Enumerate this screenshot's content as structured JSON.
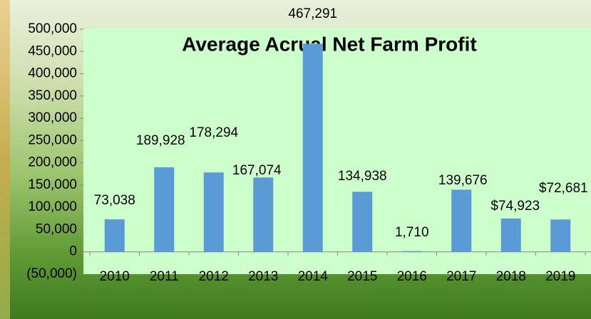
{
  "chart_data": {
    "type": "bar",
    "title": "Average Acrual Net Farm Profit",
    "categories": [
      "2010",
      "2011",
      "2012",
      "2013",
      "2014",
      "2015",
      "2016",
      "2017",
      "2018",
      "2019"
    ],
    "values": [
      73038,
      189928,
      178294,
      167074,
      467291,
      134938,
      1710,
      139676,
      74923,
      72681
    ],
    "value_labels": [
      "73,038",
      "189,928",
      "178,294",
      "167,074",
      "467,291",
      "134,938",
      "1,710",
      "139,676",
      "$74,923",
      "$72,681"
    ],
    "color": "#5b9bd5",
    "ylim": [
      -50000,
      500000
    ],
    "yticks": [
      {
        "value": -50000,
        "label": "(50,000)"
      },
      0,
      {
        "value": 50000,
        "label": "50,000"
      },
      {
        "value": 100000,
        "label": "100,000"
      },
      {
        "value": 150000,
        "label": "150,000"
      },
      {
        "value": 200000,
        "label": "200,000"
      },
      {
        "value": 250000,
        "label": "250,000"
      },
      {
        "value": 300000,
        "label": "300,000"
      },
      {
        "value": 350000,
        "label": "350,000"
      },
      {
        "value": 400000,
        "label": "400,000"
      },
      {
        "value": 450000,
        "label": "450,000"
      },
      {
        "value": 500000,
        "label": "500,000"
      }
    ],
    "grid": false
  }
}
